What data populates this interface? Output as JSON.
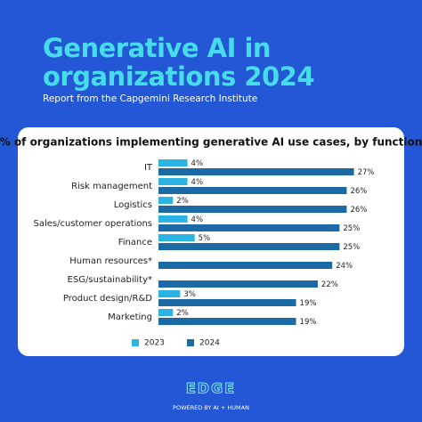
{
  "header": {
    "title": "Generative AI in organizations 2024",
    "subtitle": "Report from the Capgemini Research Institute"
  },
  "chart_data": {
    "type": "hbar",
    "title": "% of organizations implementing generative AI use cases, by function",
    "categories": [
      "IT",
      "Risk management",
      "Logistics",
      "Sales/customer operations",
      "Finance",
      "Human resources*",
      "ESG/sustainability*",
      "Product design/R&D",
      "Marketing"
    ],
    "series": [
      {
        "name": "2023",
        "color": "#2bb3e3",
        "values": [
          4,
          4,
          2,
          4,
          5,
          null,
          null,
          3,
          2
        ],
        "value_labels": [
          "4%",
          "4%",
          "2%",
          "4%",
          "5%",
          null,
          null,
          "3%",
          "2%"
        ]
      },
      {
        "name": "2024",
        "color": "#1b6aa5",
        "values": [
          27,
          26,
          26,
          25,
          25,
          24,
          22,
          19,
          19
        ],
        "value_labels": [
          "27%",
          "26%",
          "26%",
          "25%",
          "25%",
          "24%",
          "22%",
          "19%",
          "19%"
        ]
      }
    ],
    "xlim": [
      0,
      30
    ],
    "legend": "bottom"
  },
  "footer": {
    "logo": "EDGE",
    "tagline": "POWERED BY AI + HUMAN"
  }
}
